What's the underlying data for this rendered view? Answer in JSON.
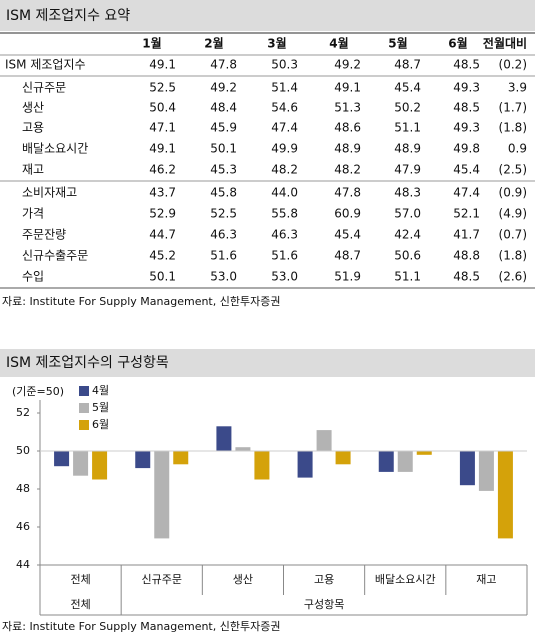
{
  "header": {
    "title": "ISM 제조업지수 요약"
  },
  "table": {
    "columns": [
      "1월",
      "2월",
      "3월",
      "4월",
      "5월",
      "6월",
      "전월대비"
    ],
    "rows": [
      [
        "ISM 제조업지수",
        "49.1",
        "47.8",
        "50.3",
        "49.2",
        "48.7",
        "48.5",
        "(0.2)"
      ],
      [
        "신규주문",
        "52.5",
        "49.2",
        "51.4",
        "49.1",
        "45.4",
        "49.3",
        "3.9"
      ],
      [
        "생산",
        "50.4",
        "48.4",
        "54.6",
        "51.3",
        "50.2",
        "48.5",
        "(1.7)"
      ],
      [
        "고용",
        "47.1",
        "45.9",
        "47.4",
        "48.6",
        "51.1",
        "49.3",
        "(1.8)"
      ],
      [
        "배달소요시간",
        "49.1",
        "50.1",
        "49.9",
        "48.9",
        "48.9",
        "49.8",
        "0.9"
      ],
      [
        "재고",
        "46.2",
        "45.3",
        "48.2",
        "48.2",
        "47.9",
        "45.4",
        "(2.5)"
      ],
      [
        "소비자재고",
        "43.7",
        "45.8",
        "44.0",
        "47.8",
        "48.3",
        "47.4",
        "(0.9)"
      ],
      [
        "가격",
        "52.9",
        "52.5",
        "55.8",
        "60.9",
        "57.0",
        "52.1",
        "(4.9)"
      ],
      [
        "주문잔량",
        "44.7",
        "46.3",
        "46.3",
        "45.4",
        "42.4",
        "41.7",
        "(0.7)"
      ],
      [
        "신규수출주문",
        "45.2",
        "51.6",
        "51.6",
        "48.7",
        "50.6",
        "48.8",
        "(1.8)"
      ],
      [
        "수입",
        "50.1",
        "53.0",
        "53.0",
        "51.9",
        "51.1",
        "48.5",
        "(2.6)"
      ]
    ]
  },
  "table_source": "자료: Institute For Supply Management, 신한투자증권",
  "chart_header": {
    "title": "ISM 제조업지수의 구성항목"
  },
  "chart_data": {
    "type": "bar",
    "y_label": "(기준=50)",
    "base": 50,
    "categories": [
      "전체",
      "신규주문",
      "생산",
      "고용",
      "배달소요시간",
      "재고"
    ],
    "group_labels": [
      "전체",
      "구성항목"
    ],
    "series": [
      {
        "name": "4월",
        "color": "#3b4a8a",
        "values": [
          49.2,
          49.1,
          51.3,
          48.6,
          48.9,
          48.2
        ]
      },
      {
        "name": "5월",
        "color": "#b3b3b3",
        "values": [
          48.7,
          45.4,
          50.2,
          51.1,
          48.9,
          47.9
        ]
      },
      {
        "name": "6월",
        "color": "#d4a20a",
        "values": [
          48.5,
          49.3,
          48.5,
          49.3,
          49.8,
          45.4
        ]
      }
    ],
    "ylim": [
      44,
      52
    ],
    "yticks": [
      44,
      46,
      48,
      50,
      52
    ]
  },
  "chart_source": "자료: Institute For Supply Management, 신한투자증권"
}
